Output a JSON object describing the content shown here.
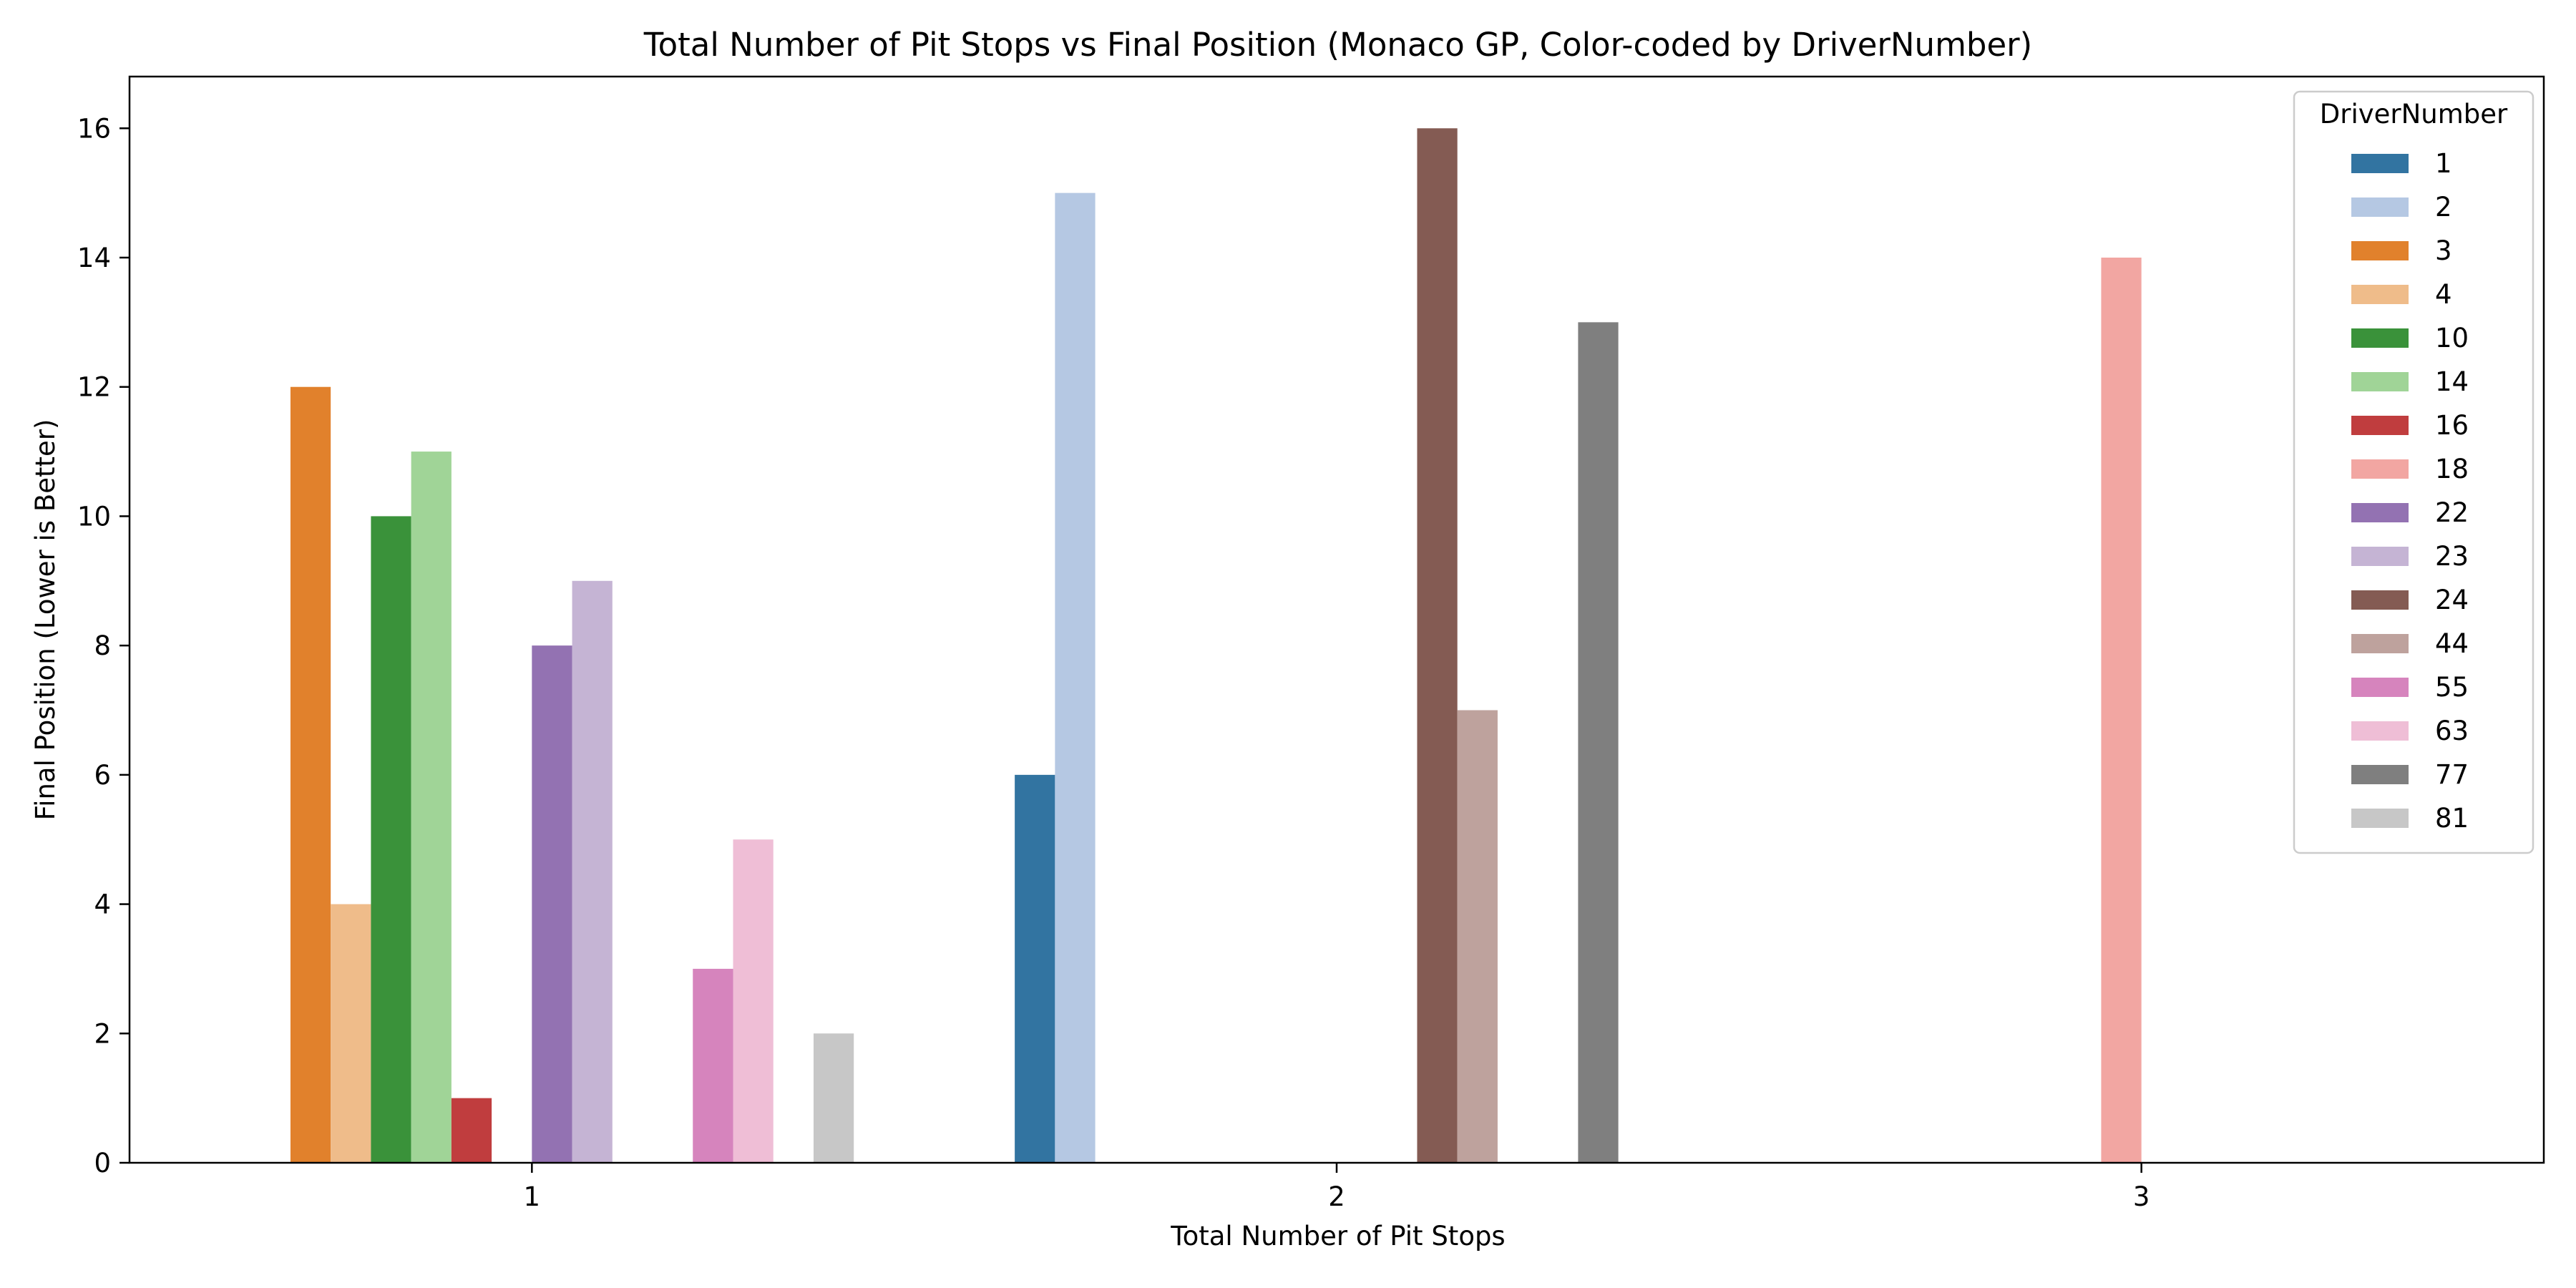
{
  "chart_data": {
    "type": "bar",
    "title": "Total Number of Pit Stops vs Final Position (Monaco GP, Color-coded by DriverNumber)",
    "xlabel": "Total Number of Pit Stops",
    "ylabel": "Final Position (Lower is Better)",
    "categories": [
      "1",
      "2",
      "3"
    ],
    "ylim": [
      0,
      16.8
    ],
    "yticks": [
      0,
      2,
      4,
      6,
      8,
      10,
      12,
      14,
      16
    ],
    "grid": false,
    "legend": {
      "title": "DriverNumber",
      "placement": "top-right"
    },
    "series": [
      {
        "name": "1",
        "color": "#3274a1",
        "values": [
          null,
          6,
          null
        ]
      },
      {
        "name": "2",
        "color": "#b5c8e3",
        "values": [
          null,
          15,
          null
        ]
      },
      {
        "name": "3",
        "color": "#e1812c",
        "values": [
          12,
          null,
          null
        ]
      },
      {
        "name": "4",
        "color": "#efbc8a",
        "values": [
          4,
          null,
          null
        ]
      },
      {
        "name": "10",
        "color": "#3a923a",
        "values": [
          10,
          null,
          null
        ]
      },
      {
        "name": "14",
        "color": "#a0d497",
        "values": [
          11,
          null,
          null
        ]
      },
      {
        "name": "16",
        "color": "#c03d3e",
        "values": [
          1,
          null,
          null
        ]
      },
      {
        "name": "18",
        "color": "#f2a6a2",
        "values": [
          null,
          null,
          14
        ]
      },
      {
        "name": "22",
        "color": "#9372b2",
        "values": [
          8,
          null,
          null
        ]
      },
      {
        "name": "23",
        "color": "#c5b4d4",
        "values": [
          9,
          null,
          null
        ]
      },
      {
        "name": "24",
        "color": "#845b53",
        "values": [
          null,
          16,
          null
        ]
      },
      {
        "name": "44",
        "color": "#bea29d",
        "values": [
          null,
          7,
          null
        ]
      },
      {
        "name": "55",
        "color": "#d684bd",
        "values": [
          3,
          null,
          null
        ]
      },
      {
        "name": "63",
        "color": "#efbed6",
        "values": [
          5,
          null,
          null
        ]
      },
      {
        "name": "77",
        "color": "#7f7f7f",
        "values": [
          null,
          13,
          null
        ]
      },
      {
        "name": "81",
        "color": "#c7c7c7",
        "values": [
          2,
          null,
          null
        ]
      }
    ]
  }
}
